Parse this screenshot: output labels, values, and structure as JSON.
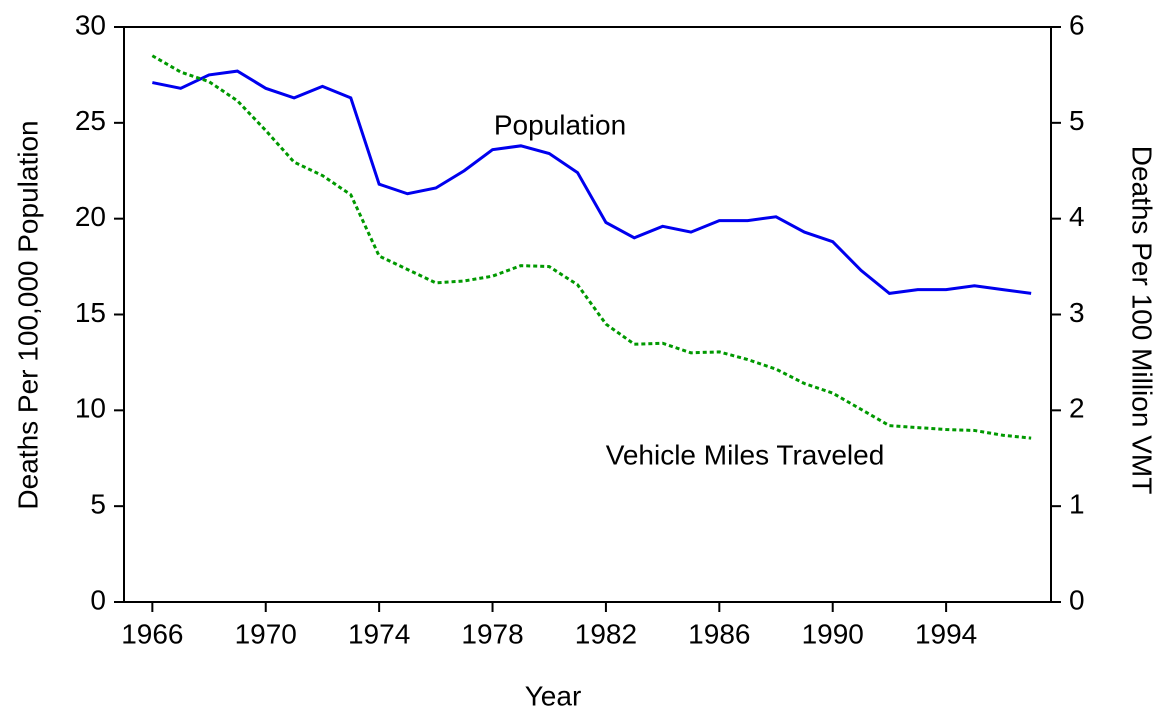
{
  "chart_data": {
    "type": "line",
    "x": [
      1966,
      1967,
      1968,
      1969,
      1970,
      1971,
      1972,
      1973,
      1974,
      1975,
      1976,
      1977,
      1978,
      1979,
      1980,
      1981,
      1982,
      1983,
      1984,
      1985,
      1986,
      1987,
      1988,
      1989,
      1990,
      1991,
      1992,
      1993,
      1994,
      1995,
      1996,
      1997
    ],
    "x_label": "Year",
    "y_label": "Deaths Per 100,000 Population",
    "y2_label": "Deaths Per 100 Million VMT",
    "series": [
      {
        "name": "Population",
        "color": "#0000ee",
        "style": "solid",
        "values": [
          27.1,
          26.8,
          27.5,
          27.7,
          26.8,
          26.3,
          26.9,
          26.3,
          21.8,
          21.3,
          21.6,
          22.5,
          23.6,
          23.8,
          23.4,
          22.4,
          19.8,
          19.0,
          19.6,
          19.3,
          19.9,
          19.9,
          20.1,
          19.3,
          18.8,
          17.3,
          16.1,
          16.3,
          16.3,
          16.5,
          16.3,
          16.1
        ]
      },
      {
        "name": "Vehicle Miles Traveled",
        "color": "#009900",
        "style": "dotted",
        "axis": "y2",
        "values": [
          5.7,
          5.53,
          5.43,
          5.23,
          4.92,
          4.59,
          4.45,
          4.25,
          3.61,
          3.47,
          3.33,
          3.35,
          3.4,
          3.51,
          3.5,
          3.31,
          2.9,
          2.69,
          2.7,
          2.6,
          2.61,
          2.53,
          2.43,
          2.28,
          2.18,
          2.01,
          1.84,
          1.82,
          1.8,
          1.79,
          1.74,
          1.71
        ]
      }
    ],
    "xlim": [
      1965,
      1997.7
    ],
    "xticks": [
      1966,
      1970,
      1974,
      1978,
      1982,
      1986,
      1990,
      1994
    ],
    "ylim": [
      0,
      30
    ],
    "yticks": [
      0,
      5,
      10,
      15,
      20,
      25,
      30
    ],
    "y2lim": [
      0,
      6
    ],
    "y2ticks": [
      0,
      1,
      2,
      3,
      4,
      5,
      6
    ],
    "grid": false
  }
}
